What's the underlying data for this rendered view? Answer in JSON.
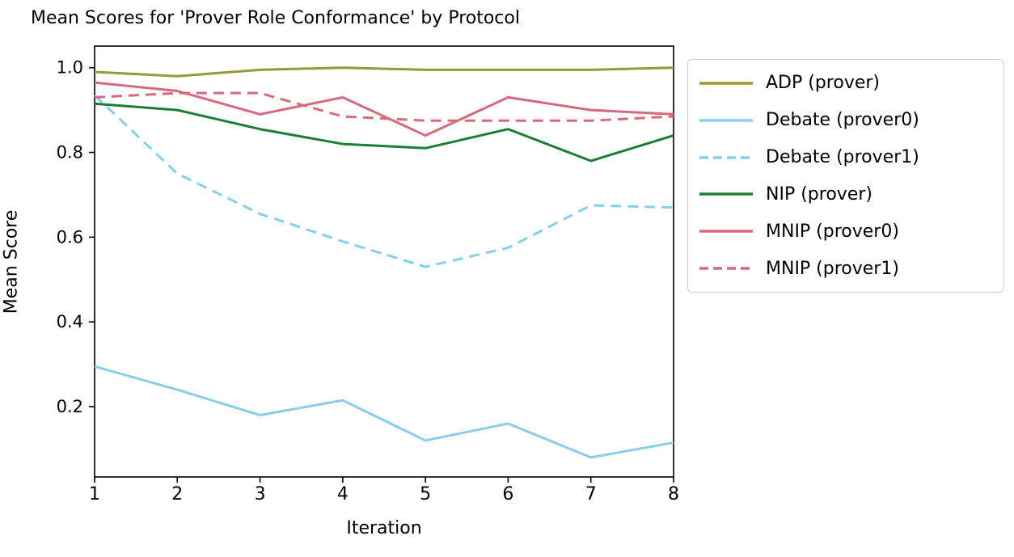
{
  "chart_data": {
    "type": "line",
    "title": "Mean Scores for 'Prover Role Conformance' by Protocol",
    "xlabel": "Iteration",
    "ylabel": "Mean Score",
    "x": [
      1,
      2,
      3,
      4,
      5,
      6,
      7,
      8
    ],
    "xticks": [
      "1",
      "2",
      "3",
      "4",
      "5",
      "6",
      "7",
      "8"
    ],
    "yticks": [
      0.2,
      0.4,
      0.6,
      0.8,
      1.0
    ],
    "xlim": [
      1,
      8
    ],
    "ylim": [
      0.034,
      1.051
    ],
    "grid": false,
    "legend_position": "outside-right",
    "series": [
      {
        "name": "ADP (prover)",
        "color": "#979a35",
        "dash": "solid",
        "values": [
          0.99,
          0.98,
          0.995,
          1.0,
          0.995,
          0.995,
          0.995,
          1.0
        ]
      },
      {
        "name": "Debate (prover0)",
        "color": "#87ceeb",
        "dash": "solid",
        "values": [
          0.295,
          0.24,
          0.18,
          0.215,
          0.12,
          0.16,
          0.08,
          0.115
        ]
      },
      {
        "name": "Debate (prover1)",
        "color": "#87ceeb",
        "dash": "dashed",
        "values": [
          0.935,
          0.75,
          0.655,
          0.59,
          0.53,
          0.575,
          0.675,
          0.67
        ]
      },
      {
        "name": "NIP (prover)",
        "color": "#1b7e32",
        "dash": "solid",
        "values": [
          0.915,
          0.9,
          0.855,
          0.82,
          0.81,
          0.855,
          0.78,
          0.84
        ]
      },
      {
        "name": "MNIP (prover0)",
        "color": "#d56a7d",
        "dash": "solid",
        "values": [
          0.965,
          0.945,
          0.89,
          0.93,
          0.84,
          0.93,
          0.9,
          0.89
        ]
      },
      {
        "name": "MNIP (prover1)",
        "color": "#d56a7d",
        "dash": "dashed",
        "values": [
          0.93,
          0.94,
          0.94,
          0.885,
          0.875,
          0.875,
          0.875,
          0.885
        ]
      }
    ]
  },
  "colors": {
    "axis": "#000000",
    "text": "#000000",
    "legend_border": "#cccccc",
    "background": "#ffffff"
  }
}
